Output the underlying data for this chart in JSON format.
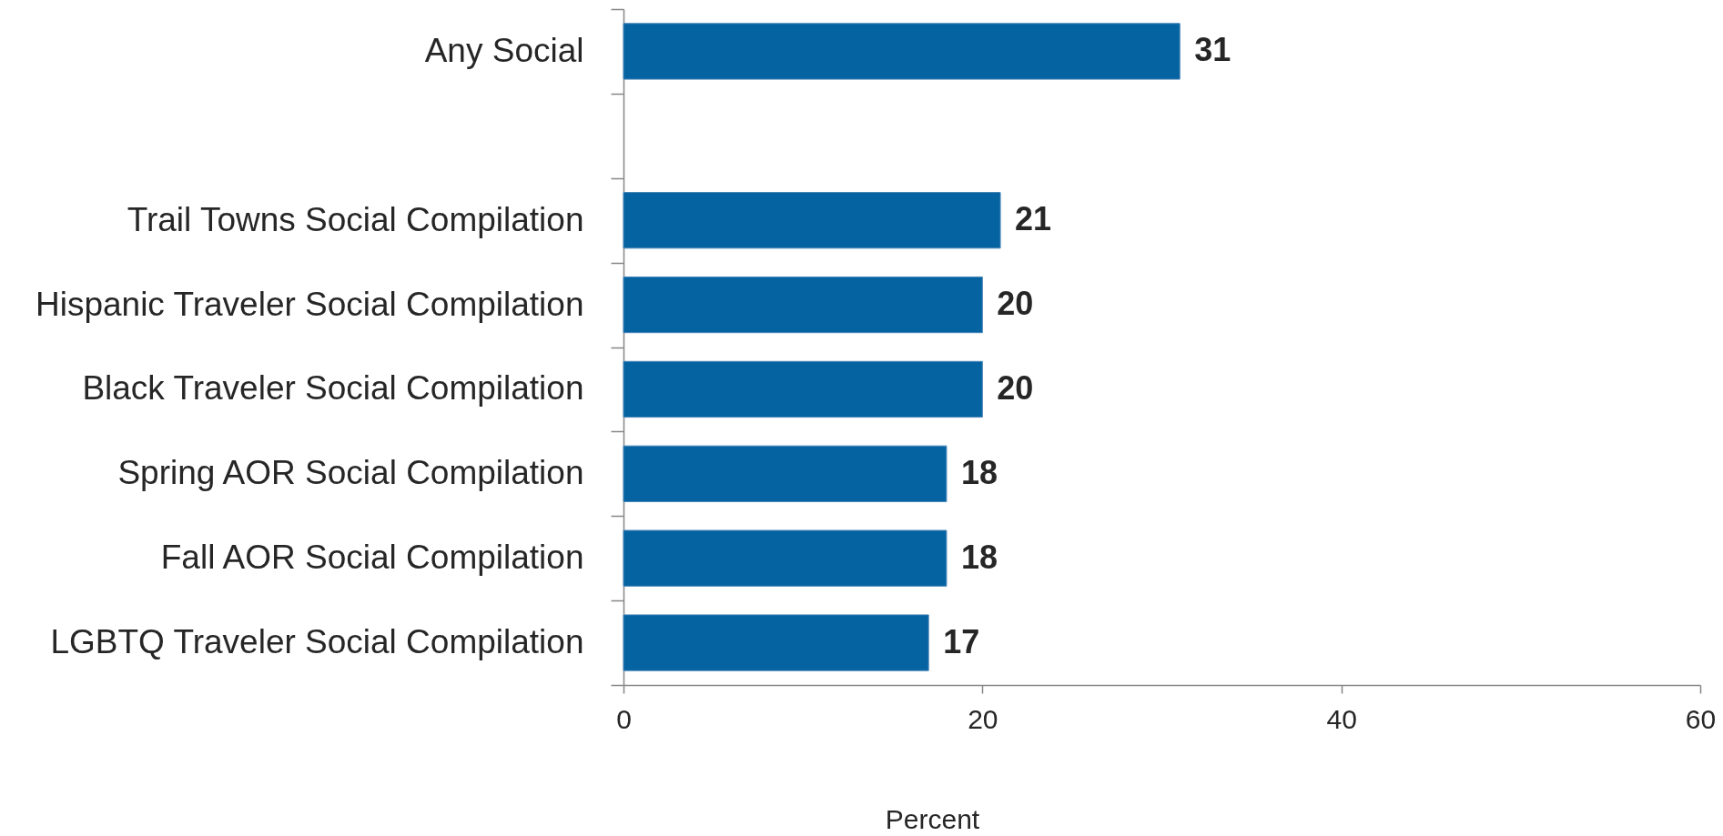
{
  "chart_data": {
    "type": "bar",
    "orientation": "horizontal",
    "categories": [
      "Any Social",
      null,
      "Trail Towns Social Compilation",
      "Hispanic Traveler Social Compilation",
      "Black Traveler Social Compilation",
      "Spring AOR Social Compilation",
      "Fall AOR Social Compilation",
      "LGBTQ Traveler Social Compilation"
    ],
    "values": [
      31,
      null,
      21,
      20,
      20,
      18,
      18,
      17
    ],
    "color": "#0563a1",
    "data_labels": true,
    "xlabel": "Percent",
    "xlim": [
      0,
      60
    ],
    "xticks": [
      0,
      20,
      40,
      60
    ]
  }
}
